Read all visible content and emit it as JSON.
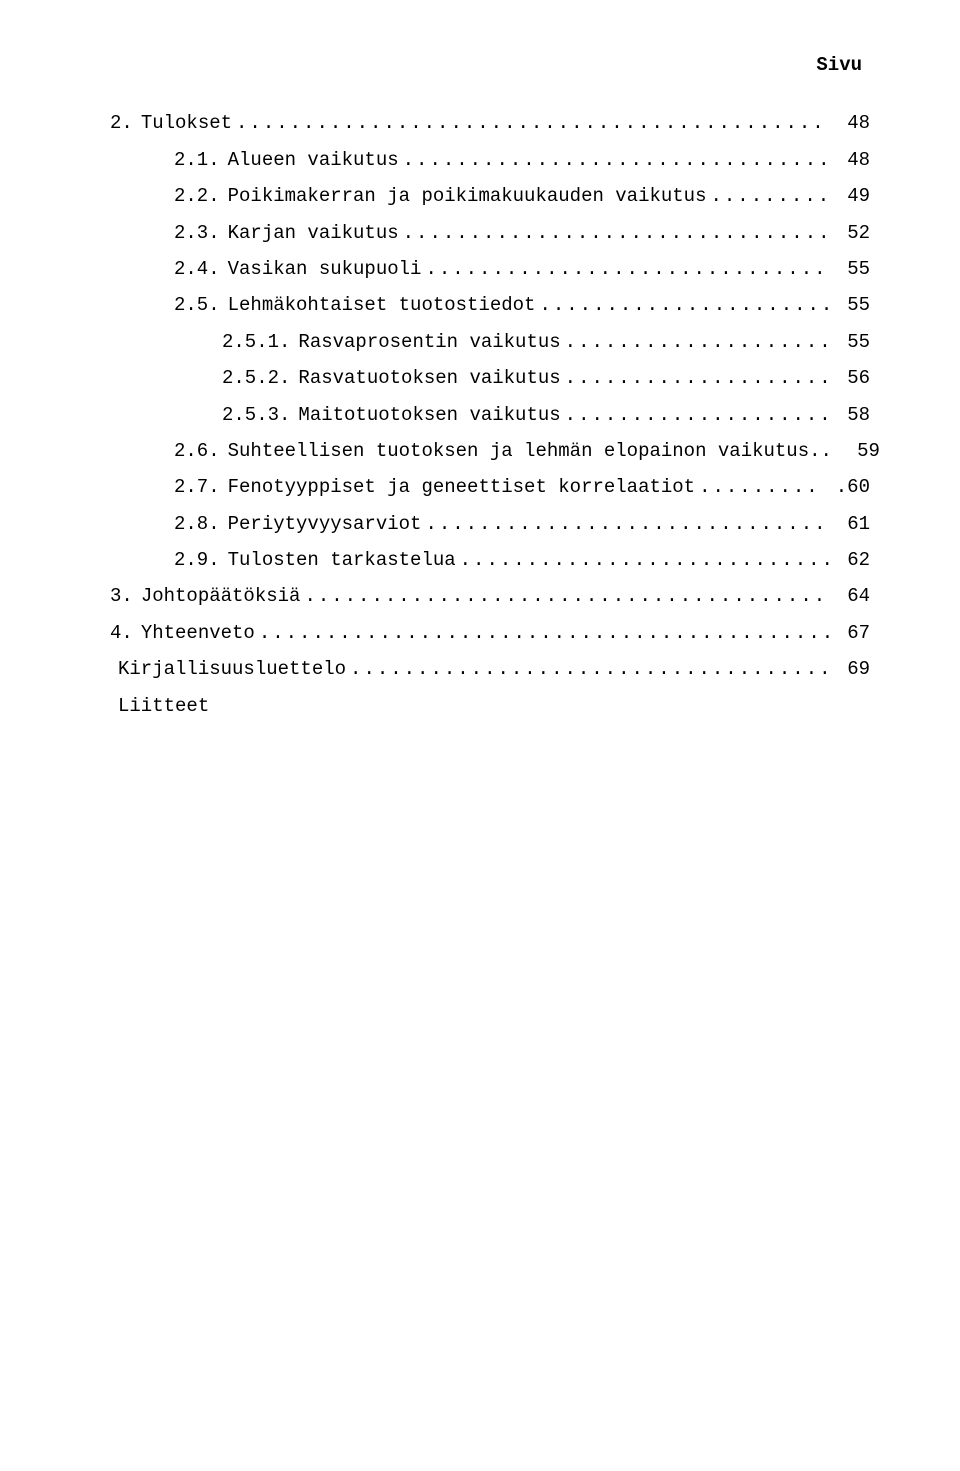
{
  "header": "Sivu",
  "entries": [
    {
      "indent": 0,
      "num": "2.",
      "title": "Tulokset",
      "page": "48"
    },
    {
      "indent": 1,
      "num": "2.1.",
      "title": "Alueen vaikutus",
      "page": "48"
    },
    {
      "indent": 1,
      "num": "2.2.",
      "title": "Poikimakerran ja poikimakuukauden vaikutus",
      "page": "49"
    },
    {
      "indent": 1,
      "num": "2.3.",
      "title": "Karjan vaikutus",
      "page": "52"
    },
    {
      "indent": 1,
      "num": "2.4.",
      "title": "Vasikan sukupuoli",
      "page": "55"
    },
    {
      "indent": 1,
      "num": "2.5.",
      "title": "Lehmäkohtaiset tuotostiedot",
      "page": "55"
    },
    {
      "indent": 2,
      "num": "2.5.1.",
      "title": "Rasvaprosentin vaikutus",
      "page": "55"
    },
    {
      "indent": 2,
      "num": "2.5.2.",
      "title": "Rasvatuotoksen vaikutus",
      "page": "56"
    },
    {
      "indent": 2,
      "num": "2.5.3.",
      "title": "Maitotuotoksen vaikutus",
      "page": "58"
    },
    {
      "indent": 1,
      "num": "2.6.",
      "title": "Suhteellisen tuotoksen ja lehmän elopainon vaikutus..",
      "page": "59"
    },
    {
      "indent": 1,
      "num": "2.7.",
      "title": "Fenotyyppiset ja geneettiset korrelaatiot",
      "page": ".60"
    },
    {
      "indent": 1,
      "num": "2.8.",
      "title": "Periytyvyysarviot",
      "page": "61"
    },
    {
      "indent": 1,
      "num": "2.9.",
      "title": "Tulosten tarkastelua",
      "page": "62"
    },
    {
      "indent": 0,
      "num": "3.",
      "title": "Johtopäätöksiä",
      "page": "64"
    },
    {
      "indent": 0,
      "num": "4.",
      "title": "Yhteenveto",
      "page": "67"
    },
    {
      "indent": 0,
      "num": "",
      "title": "Kirjallisuusluettelo",
      "page": "69"
    },
    {
      "indent": 0,
      "num": "",
      "title": "Liitteet",
      "page": "",
      "nodots": true
    }
  ]
}
